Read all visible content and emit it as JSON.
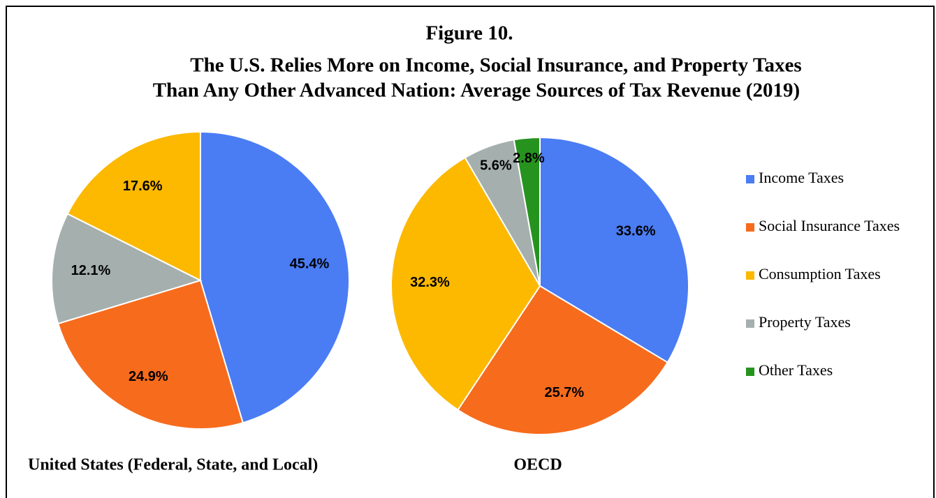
{
  "title": [
    "Figure 10.",
    "The U.S. Relies More on Income, Social Insurance, and Property Taxes",
    "Than Any Other Advanced Nation: Average Sources of Tax Revenue (2019)"
  ],
  "legend": {
    "labels": [
      "Income Taxes",
      "Social Insurance Taxes",
      "Consumption Taxes",
      "Property Taxes",
      "Other Taxes"
    ],
    "colors": [
      "#4a7cf4",
      "#f76b1c",
      "#fcb900",
      "#a5b0ae",
      "#27931f"
    ]
  },
  "chart_data": [
    {
      "type": "pie",
      "subtitle": "United States (Federal, State, and Local)",
      "categories": [
        "Income Taxes",
        "Social Insurance Taxes",
        "Property Taxes",
        "Consumption Taxes"
      ],
      "values": [
        45.4,
        24.9,
        12.1,
        17.6
      ],
      "value_labels": [
        "45.4%",
        "24.9%",
        "12.1%",
        "17.6%"
      ],
      "colors": [
        "#4a7cf4",
        "#f76b1c",
        "#a5b0ae",
        "#fcb900"
      ]
    },
    {
      "type": "pie",
      "subtitle": "OECD",
      "categories": [
        "Income Taxes",
        "Social Insurance Taxes",
        "Consumption Taxes",
        "Property Taxes",
        "Other Taxes"
      ],
      "values": [
        33.6,
        25.7,
        32.3,
        5.6,
        2.8
      ],
      "value_labels": [
        "33.6%",
        "25.7%",
        "32.3%",
        "5.6%",
        "2.8%"
      ],
      "colors": [
        "#4a7cf4",
        "#f76b1c",
        "#fcb900",
        "#a5b0ae",
        "#27931f"
      ]
    }
  ]
}
